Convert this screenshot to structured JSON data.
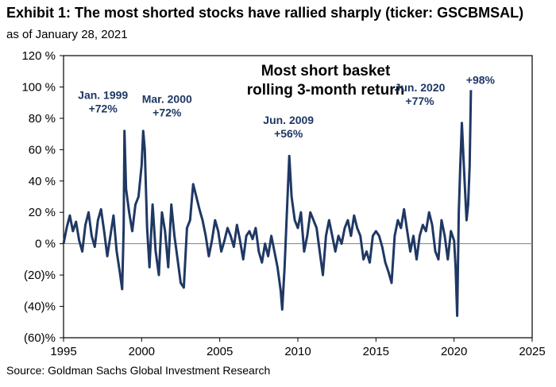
{
  "header": {
    "title": "Exhibit 1: The most shorted stocks have rallied sharply (ticker: GSCBMSAL)",
    "subtitle": "as of January 28, 2021"
  },
  "footer": {
    "source": "Source: Goldman Sachs Global Investment Research"
  },
  "chart_data": {
    "type": "line",
    "title_lines": [
      "Most short basket",
      "rolling 3-month return"
    ],
    "xlabel": "",
    "ylabel": "",
    "xlim": [
      1995,
      2025
    ],
    "ylim": [
      -60,
      120
    ],
    "x_ticks": [
      1995,
      2000,
      2005,
      2010,
      2015,
      2020,
      2025
    ],
    "x_tick_labels": [
      "1995",
      "2000",
      "2005",
      "2010",
      "2015",
      "2020",
      "2025"
    ],
    "y_ticks": [
      -60,
      -40,
      -20,
      0,
      20,
      40,
      60,
      80,
      100,
      120
    ],
    "y_tick_labels": [
      "(60)%",
      "(40)%",
      "(20)%",
      "0 %",
      "20 %",
      "40 %",
      "60 %",
      "80 %",
      "100 %",
      "120 %"
    ],
    "grid": false,
    "line_color": "#1f3864",
    "annotation_color": "#1f3864",
    "annotations": [
      {
        "x": 1998.9,
        "y": 72,
        "lines": [
          "Jan. 1999",
          "+72%"
        ]
      },
      {
        "x": 2000.2,
        "y": 72,
        "lines": [
          "Mar. 2000",
          "+72%"
        ]
      },
      {
        "x": 2009.4,
        "y": 56,
        "lines": [
          "Jun. 2009",
          "+56%"
        ]
      },
      {
        "x": 2020.5,
        "y": 77,
        "lines": [
          "Jun. 2020",
          "+77%"
        ]
      },
      {
        "x": 2021.08,
        "y": 98,
        "lines": [
          "+98%"
        ]
      }
    ],
    "series": [
      {
        "points": [
          [
            1995.0,
            0
          ],
          [
            1995.2,
            10
          ],
          [
            1995.4,
            18
          ],
          [
            1995.6,
            8
          ],
          [
            1995.8,
            14
          ],
          [
            1996.0,
            2
          ],
          [
            1996.2,
            -5
          ],
          [
            1996.4,
            12
          ],
          [
            1996.6,
            20
          ],
          [
            1996.8,
            5
          ],
          [
            1997.0,
            -2
          ],
          [
            1997.2,
            15
          ],
          [
            1997.4,
            22
          ],
          [
            1997.6,
            8
          ],
          [
            1997.8,
            -8
          ],
          [
            1998.0,
            5
          ],
          [
            1998.2,
            18
          ],
          [
            1998.4,
            -5
          ],
          [
            1998.6,
            -18
          ],
          [
            1998.75,
            -29
          ],
          [
            1998.85,
            10
          ],
          [
            1998.9,
            72
          ],
          [
            1999.0,
            35
          ],
          [
            1999.2,
            20
          ],
          [
            1999.4,
            8
          ],
          [
            1999.6,
            25
          ],
          [
            1999.8,
            30
          ],
          [
            2000.0,
            50
          ],
          [
            2000.1,
            72
          ],
          [
            2000.2,
            60
          ],
          [
            2000.35,
            10
          ],
          [
            2000.5,
            -15
          ],
          [
            2000.7,
            25
          ],
          [
            2000.9,
            -5
          ],
          [
            2001.1,
            -20
          ],
          [
            2001.3,
            20
          ],
          [
            2001.5,
            8
          ],
          [
            2001.7,
            -15
          ],
          [
            2001.9,
            25
          ],
          [
            2002.1,
            5
          ],
          [
            2002.3,
            -10
          ],
          [
            2002.5,
            -25
          ],
          [
            2002.7,
            -28
          ],
          [
            2002.9,
            10
          ],
          [
            2003.1,
            15
          ],
          [
            2003.3,
            38
          ],
          [
            2003.5,
            30
          ],
          [
            2003.7,
            22
          ],
          [
            2003.9,
            15
          ],
          [
            2004.1,
            5
          ],
          [
            2004.3,
            -8
          ],
          [
            2004.5,
            2
          ],
          [
            2004.7,
            15
          ],
          [
            2004.9,
            8
          ],
          [
            2005.1,
            -5
          ],
          [
            2005.3,
            2
          ],
          [
            2005.5,
            10
          ],
          [
            2005.7,
            5
          ],
          [
            2005.9,
            -2
          ],
          [
            2006.1,
            12
          ],
          [
            2006.3,
            2
          ],
          [
            2006.5,
            -10
          ],
          [
            2006.7,
            5
          ],
          [
            2006.9,
            8
          ],
          [
            2007.1,
            3
          ],
          [
            2007.3,
            10
          ],
          [
            2007.5,
            -5
          ],
          [
            2007.7,
            -12
          ],
          [
            2007.9,
            0
          ],
          [
            2008.1,
            -8
          ],
          [
            2008.3,
            5
          ],
          [
            2008.5,
            -5
          ],
          [
            2008.7,
            -15
          ],
          [
            2008.9,
            -30
          ],
          [
            2009.0,
            -42
          ],
          [
            2009.15,
            -15
          ],
          [
            2009.3,
            20
          ],
          [
            2009.45,
            56
          ],
          [
            2009.6,
            30
          ],
          [
            2009.8,
            15
          ],
          [
            2010.0,
            10
          ],
          [
            2010.2,
            20
          ],
          [
            2010.4,
            -5
          ],
          [
            2010.6,
            5
          ],
          [
            2010.8,
            20
          ],
          [
            2011.0,
            15
          ],
          [
            2011.2,
            10
          ],
          [
            2011.4,
            -5
          ],
          [
            2011.6,
            -20
          ],
          [
            2011.8,
            5
          ],
          [
            2012.0,
            15
          ],
          [
            2012.2,
            5
          ],
          [
            2012.4,
            -5
          ],
          [
            2012.6,
            5
          ],
          [
            2012.8,
            0
          ],
          [
            2013.0,
            10
          ],
          [
            2013.2,
            15
          ],
          [
            2013.4,
            5
          ],
          [
            2013.6,
            18
          ],
          [
            2013.8,
            10
          ],
          [
            2014.0,
            5
          ],
          [
            2014.2,
            -10
          ],
          [
            2014.4,
            -5
          ],
          [
            2014.6,
            -12
          ],
          [
            2014.8,
            5
          ],
          [
            2015.0,
            8
          ],
          [
            2015.2,
            5
          ],
          [
            2015.4,
            -2
          ],
          [
            2015.6,
            -12
          ],
          [
            2015.8,
            -18
          ],
          [
            2016.0,
            -25
          ],
          [
            2016.2,
            5
          ],
          [
            2016.4,
            15
          ],
          [
            2016.6,
            10
          ],
          [
            2016.8,
            22
          ],
          [
            2017.0,
            8
          ],
          [
            2017.2,
            -5
          ],
          [
            2017.4,
            5
          ],
          [
            2017.6,
            -10
          ],
          [
            2017.8,
            5
          ],
          [
            2018.0,
            12
          ],
          [
            2018.2,
            8
          ],
          [
            2018.4,
            20
          ],
          [
            2018.6,
            12
          ],
          [
            2018.8,
            -5
          ],
          [
            2019.0,
            -10
          ],
          [
            2019.2,
            15
          ],
          [
            2019.4,
            5
          ],
          [
            2019.6,
            -10
          ],
          [
            2019.8,
            8
          ],
          [
            2020.0,
            2
          ],
          [
            2020.1,
            -15
          ],
          [
            2020.2,
            -46
          ],
          [
            2020.3,
            20
          ],
          [
            2020.4,
            50
          ],
          [
            2020.5,
            77
          ],
          [
            2020.6,
            55
          ],
          [
            2020.7,
            35
          ],
          [
            2020.8,
            15
          ],
          [
            2020.9,
            25
          ],
          [
            2021.0,
            50
          ],
          [
            2021.08,
            98
          ]
        ]
      }
    ]
  }
}
